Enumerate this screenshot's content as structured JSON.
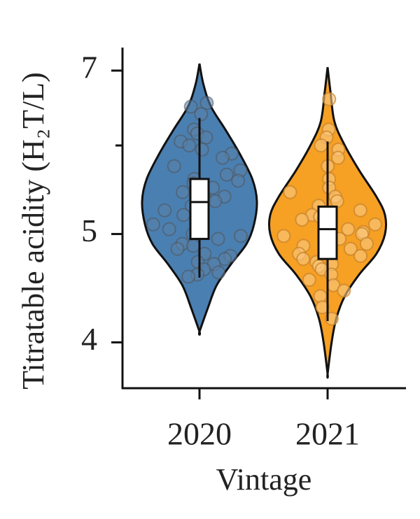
{
  "chart_data": {
    "type": "violin",
    "x_label": "Vintage",
    "y_label": "Titratable acidity (H₂T/L)",
    "categories": [
      "2020",
      "2021"
    ],
    "log_y": true,
    "ylim": [
      3.64,
      7.34
    ],
    "yticks": [
      4,
      5,
      7
    ],
    "yminor_ticks": [
      6
    ],
    "groups": [
      {
        "color": "#4a7fb1",
        "values": [
          6.55,
          6.5,
          6.4,
          6.2,
          6.15,
          6.1,
          6.05,
          6.0,
          5.95,
          5.9,
          5.85,
          5.75,
          5.7,
          5.65,
          5.6,
          5.58,
          5.55,
          5.5,
          5.45,
          5.4,
          5.38,
          5.35,
          5.3,
          5.25,
          5.2,
          5.15,
          5.1,
          5.05,
          5.0,
          4.98,
          4.95,
          4.9,
          4.88,
          4.85,
          4.8,
          4.78,
          4.75,
          4.72,
          4.7,
          4.65,
          4.62,
          4.6,
          4.58
        ],
        "box": {
          "whisker_low": 4.57,
          "q1": 4.95,
          "median": 5.34,
          "q3": 5.6,
          "whisker_high": 6.35
        },
        "violin": {
          "y": [
            7.1,
            6.8,
            6.5,
            6.2,
            5.9,
            5.6,
            5.35,
            5.1,
            4.9,
            4.7,
            4.5,
            4.3,
            4.09
          ],
          "width": [
            0,
            0.07,
            0.2,
            0.45,
            0.7,
            0.92,
            1.0,
            0.95,
            0.82,
            0.55,
            0.3,
            0.15,
            0
          ]
        }
      },
      {
        "color": "#f6a024",
        "values": [
          6.6,
          6.2,
          6.1,
          6.0,
          5.95,
          5.85,
          5.75,
          5.6,
          5.5,
          5.45,
          5.4,
          5.35,
          5.3,
          5.25,
          5.2,
          5.18,
          5.15,
          5.1,
          5.05,
          5.02,
          5.0,
          4.98,
          4.95,
          4.9,
          4.88,
          4.85,
          4.8,
          4.78,
          4.75,
          4.72,
          4.7,
          4.68,
          4.65,
          4.6,
          4.55,
          4.5,
          4.45,
          4.4,
          4.3,
          4.2
        ],
        "box": {
          "whisker_low": 4.18,
          "q1": 4.75,
          "median": 5.05,
          "q3": 5.29,
          "whisker_high": 6.05
        },
        "violin": {
          "y": [
            7.05,
            6.7,
            6.3,
            6.0,
            5.7,
            5.4,
            5.2,
            5.0,
            4.8,
            4.6,
            4.4,
            4.2,
            4.0,
            3.75
          ],
          "width": [
            0,
            0.05,
            0.12,
            0.3,
            0.55,
            0.85,
            1.0,
            1.0,
            0.85,
            0.55,
            0.3,
            0.15,
            0.07,
            0
          ]
        }
      }
    ]
  }
}
